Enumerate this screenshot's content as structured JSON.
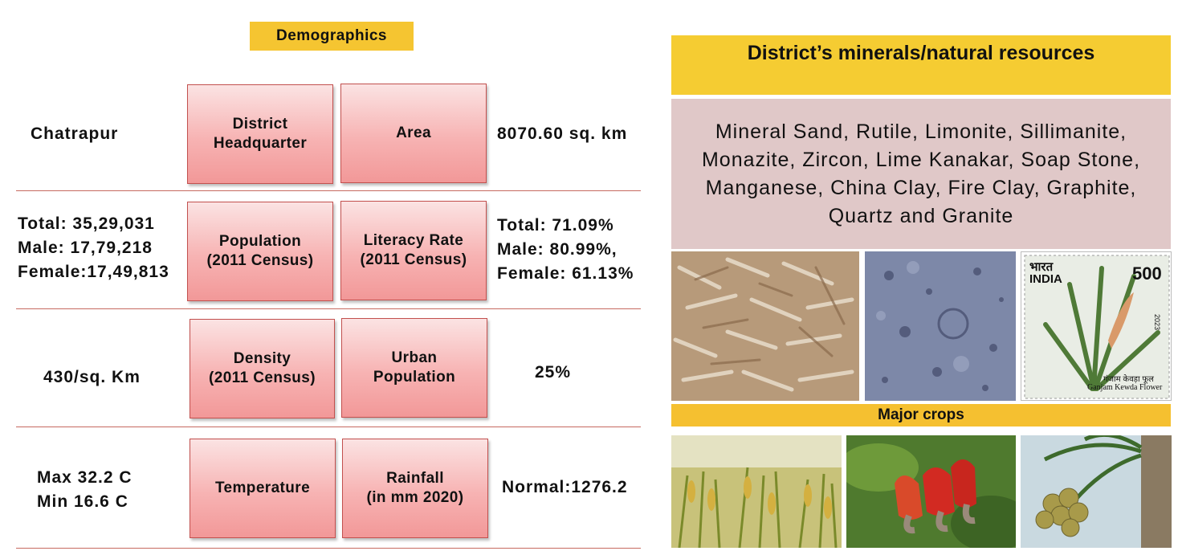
{
  "demographics": {
    "header": "Demographics",
    "rows": [
      {
        "left_value": "Chatrapur",
        "box1": "District\nHeadquarter",
        "box2": "Area",
        "right_value": "8070.60  sq. km"
      },
      {
        "left_value": "Total: 35,29,031\nMale: 17,79,218\nFemale:17,49,813",
        "box1": "Population\n(2011 Census)",
        "box2": "Literacy Rate\n(2011 Census)",
        "right_value": "Total: 71.09%\nMale: 80.99%,\nFemale: 61.13%"
      },
      {
        "left_value": "430/sq. Km",
        "box1": "Density\n(2011 Census)",
        "box2": "Urban\nPopulation",
        "right_value": "25%"
      },
      {
        "left_value": "Max 32.2 C\nMin 16.6 C",
        "box1": "Temperature",
        "box2": "Rainfall\n(in mm 2020)",
        "right_value": "Normal:1276.2"
      }
    ]
  },
  "resources": {
    "header": "District’s minerals/natural resources",
    "text": "Mineral Sand, Rutile,  Limonite, Sillimanite, Monazite, Zircon, Lime Kanakar, Soap Stone, Manganese, China Clay, Fire Clay, Graphite, Quartz and Granite",
    "images": [
      "dried-fish-photo",
      "stone-texture-photo",
      "kewda-stamp-photo"
    ],
    "stamp": {
      "country_hindi": "भारत",
      "country": "INDIA",
      "value": "500",
      "caption_hindi": "गंजाम केवड़ा फूल",
      "caption": "Ganjam Kewda Flower",
      "year": "2023"
    }
  },
  "crops": {
    "header": "Major crops",
    "images": [
      "paddy-photo",
      "cashew-photo",
      "coconut-photo"
    ]
  },
  "colors": {
    "header_yellow": "#f5c531",
    "box_pink": "#f7b3b3",
    "box_border": "#c2504e",
    "resources_bg": "#e0c8c8",
    "divider": "#c66a60"
  }
}
